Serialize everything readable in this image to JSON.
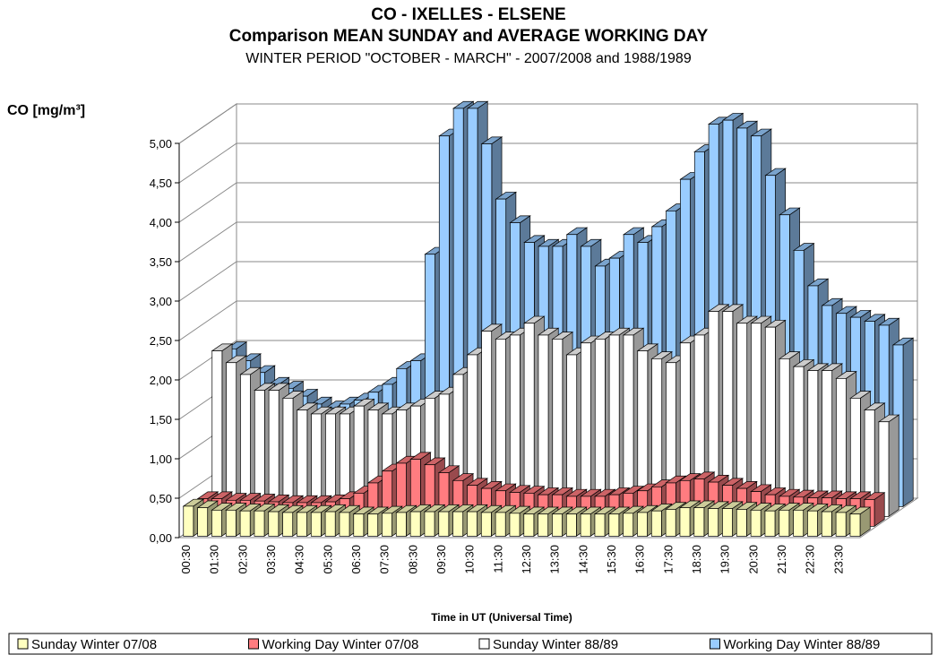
{
  "chart_data": {
    "type": "bar3d",
    "title": "CO - IXELLES - ELSENE",
    "subtitle": "Comparison MEAN SUNDAY and AVERAGE WORKING DAY",
    "period": "WINTER PERIOD \"OCTOBER - MARCH\" - 2007/2008 and 1988/1989",
    "y_label": "CO  [mg/m³]",
    "x_label": "Time in UT (Universal Time)",
    "categories": [
      "00:30",
      null,
      "01:30",
      null,
      "02:30",
      null,
      "03:30",
      null,
      "04:30",
      null,
      "05:30",
      null,
      "06:30",
      null,
      "07:30",
      null,
      "08:30",
      null,
      "09:30",
      null,
      "10:30",
      null,
      "11:30",
      null,
      "12:30",
      null,
      "13:30",
      null,
      "14:30",
      null,
      "15:30",
      null,
      "16:30",
      null,
      "17:30",
      null,
      "18:30",
      null,
      "19:30",
      null,
      "20:30",
      null,
      "21:30",
      null,
      "22:30",
      null,
      "23:30",
      null
    ],
    "series": [
      {
        "name": "Sunday Winter 07/08",
        "color": "#ffffc0",
        "values": [
          0.38,
          0.36,
          0.33,
          0.33,
          0.32,
          0.32,
          0.31,
          0.3,
          0.3,
          0.3,
          0.31,
          0.3,
          0.28,
          0.28,
          0.29,
          0.3,
          0.31,
          0.31,
          0.31,
          0.31,
          0.31,
          0.3,
          0.3,
          0.29,
          0.28,
          0.28,
          0.28,
          0.28,
          0.28,
          0.28,
          0.28,
          0.29,
          0.3,
          0.32,
          0.34,
          0.36,
          0.36,
          0.35,
          0.35,
          0.34,
          0.33,
          0.32,
          0.33,
          0.33,
          0.32,
          0.31,
          0.3,
          0.28
        ]
      },
      {
        "name": "Working Day Winter 07/08",
        "color": "#ff7c80",
        "values": [
          0.35,
          0.35,
          0.33,
          0.33,
          0.32,
          0.31,
          0.3,
          0.3,
          0.3,
          0.31,
          0.35,
          0.42,
          0.55,
          0.7,
          0.8,
          0.85,
          0.78,
          0.68,
          0.58,
          0.52,
          0.48,
          0.45,
          0.43,
          0.42,
          0.4,
          0.4,
          0.38,
          0.38,
          0.38,
          0.4,
          0.42,
          0.45,
          0.5,
          0.55,
          0.58,
          0.6,
          0.56,
          0.52,
          0.48,
          0.44,
          0.4,
          0.38,
          0.37,
          0.36,
          0.36,
          0.35,
          0.35,
          0.34
        ]
      },
      {
        "name": "Sunday Winter 88/89",
        "color": "#ffffff",
        "values": [
          2.1,
          1.95,
          1.8,
          1.6,
          1.6,
          1.5,
          1.35,
          1.3,
          1.3,
          1.3,
          1.4,
          1.35,
          1.3,
          1.35,
          1.4,
          1.5,
          1.55,
          1.8,
          2.05,
          2.35,
          2.25,
          2.3,
          2.45,
          2.3,
          2.25,
          2.05,
          2.2,
          2.25,
          2.3,
          2.3,
          2.1,
          2.0,
          1.95,
          2.2,
          2.3,
          2.6,
          2.6,
          2.45,
          2.45,
          2.4,
          2.0,
          1.9,
          1.85,
          1.85,
          1.75,
          1.5,
          1.35,
          1.2
        ]
      },
      {
        "name": "Working Day Winter 88/89",
        "color": "#99ccff",
        "values": [
          2.0,
          1.85,
          1.7,
          1.55,
          1.5,
          1.4,
          1.3,
          1.25,
          1.3,
          1.35,
          1.45,
          1.55,
          1.75,
          1.85,
          3.2,
          4.7,
          5.05,
          5.05,
          4.6,
          3.9,
          3.6,
          3.35,
          3.3,
          3.3,
          3.45,
          3.3,
          3.05,
          3.15,
          3.45,
          3.35,
          3.55,
          3.75,
          4.15,
          4.5,
          4.85,
          4.9,
          4.8,
          4.7,
          4.2,
          3.7,
          3.25,
          2.8,
          2.55,
          2.45,
          2.4,
          2.35,
          2.3,
          2.05
        ]
      }
    ],
    "ylim": [
      0,
      5
    ],
    "yticks": [
      {
        "value": 0,
        "label": "0,00"
      },
      {
        "value": 0.5,
        "label": "0,50"
      },
      {
        "value": 1,
        "label": "1,00"
      },
      {
        "value": 1.5,
        "label": "1,50"
      },
      {
        "value": 2,
        "label": "2,00"
      },
      {
        "value": 2.5,
        "label": "2,50"
      },
      {
        "value": 3,
        "label": "3,00"
      },
      {
        "value": 3.5,
        "label": "3,50"
      },
      {
        "value": 4,
        "label": "4,00"
      },
      {
        "value": 4.5,
        "label": "4,50"
      },
      {
        "value": 5,
        "label": "5,00"
      }
    ],
    "grid": true,
    "legend": "bottom"
  }
}
